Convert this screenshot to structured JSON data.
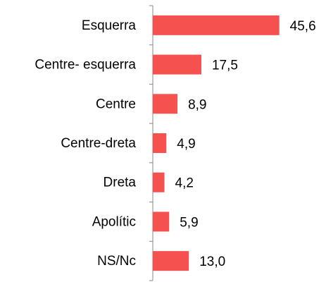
{
  "chart_data": {
    "type": "barh",
    "categories": [
      "Esquerra",
      "Centre- esquerra",
      "Centre",
      "Centre-dreta",
      "Dreta",
      "Apolític",
      "NS/Nc"
    ],
    "values": [
      45.6,
      17.5,
      8.9,
      4.9,
      4.2,
      5.9,
      13.0
    ],
    "value_labels": [
      "45,6",
      "17,5",
      "8,9",
      "4,9",
      "4,2",
      "5,9",
      "13,0"
    ],
    "color": "#f5514f",
    "xlim": [
      0,
      50
    ]
  }
}
